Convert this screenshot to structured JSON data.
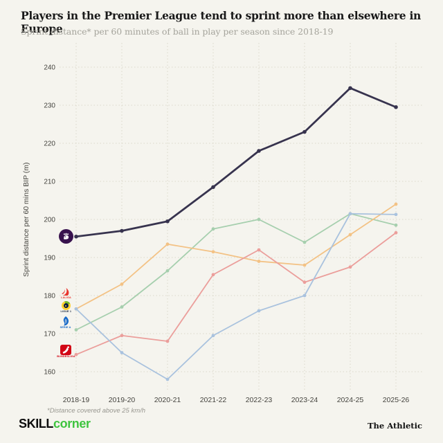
{
  "header": {
    "title": "Players in the Premier League tend to sprint more than elsewhere in Europe",
    "subtitle": "Sprint distance* per 60 minutes of ball in play per season since 2018-19"
  },
  "chart_data": {
    "type": "line",
    "x": [
      "2018-19",
      "2019-20",
      "2020-21",
      "2021-22",
      "2022-23",
      "2023-24",
      "2024-25",
      "2025-26"
    ],
    "ylabel": "Sprint distance per 60 mins BIP (m)",
    "yticks": [
      160,
      170,
      180,
      190,
      200,
      210,
      220,
      230,
      240
    ],
    "ylim": [
      154,
      246
    ],
    "grid": "dotted",
    "legend_position": "left-inline-logos",
    "series": [
      {
        "name": "Premier League",
        "color": "#37334e",
        "line_width": 2.8,
        "dot_radius": 2.8,
        "z": 5,
        "values": [
          195.5,
          197,
          199.5,
          208.5,
          218,
          223,
          234.5,
          229.5
        ]
      },
      {
        "name": "LaLiga",
        "color": "#f3c285",
        "line_width": 1.8,
        "dot_radius": 2.4,
        "z": 2,
        "values": [
          176.5,
          183,
          193.5,
          191.5,
          189,
          188,
          196,
          204
        ]
      },
      {
        "name": "Ligue 1",
        "color": "#a6cfae",
        "line_width": 1.8,
        "dot_radius": 2.4,
        "z": 1,
        "values": [
          171,
          177,
          186.5,
          197.5,
          200,
          194,
          201.5,
          198.5
        ]
      },
      {
        "name": "Serie A",
        "color": "#a9c2de",
        "line_width": 1.8,
        "dot_radius": 2.4,
        "z": 4,
        "values": [
          176.5,
          165,
          158,
          169.5,
          176,
          180,
          201.5,
          201.3
        ]
      },
      {
        "name": "Bundesliga",
        "color": "#eb9e9b",
        "line_width": 1.8,
        "dot_radius": 2.4,
        "z": 3,
        "values": [
          164.5,
          169.5,
          168,
          185.5,
          192,
          183.5,
          187.5,
          196.5
        ]
      }
    ]
  },
  "logos": {
    "premier_league": {
      "label": ""
    },
    "laliga": {
      "label": "LALIGA"
    },
    "ligue_1": {
      "label": "LIGUE 1"
    },
    "serie_a": {
      "label": "SERIE A"
    },
    "bundesliga": {
      "label": "BUNDESLIGA"
    }
  },
  "footnote": "*Distance covered above 25 km/h",
  "footer": {
    "brand_black": "SKILL",
    "brand_green": "corner",
    "credit": "The Athletic"
  },
  "colors": {
    "background": "#f5f4ee",
    "grid": "#dbd7ca",
    "title": "#191919",
    "subtitle": "#a5a49c",
    "axis_text": "#45443f",
    "laliga_red": "#e8352e",
    "ligue1_navy": "#14233e",
    "serie_a_blue": "#1468c8",
    "bundesliga_red": "#d20515",
    "premier_league_purple": "#38124e",
    "brand_green": "#3fc43f"
  }
}
